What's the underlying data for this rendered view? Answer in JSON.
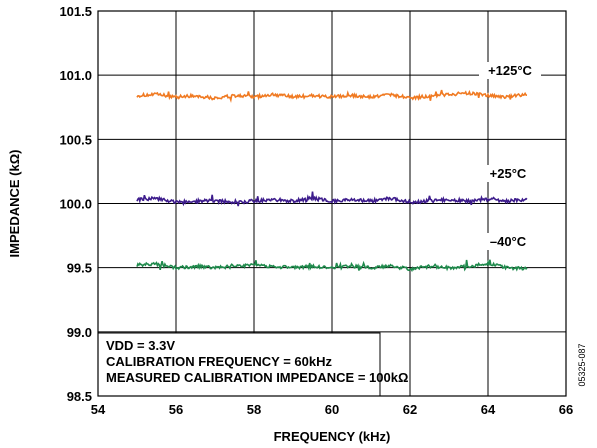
{
  "chart_data": {
    "type": "line",
    "title": "",
    "xlabel": "FREQUENCY (kHz)",
    "ylabel": "IMPEDANCE (kΩ)",
    "xlim": [
      54,
      66
    ],
    "ylim": [
      98.5,
      101.5
    ],
    "xticks": [
      54,
      56,
      58,
      60,
      62,
      64,
      66
    ],
    "xtick_labels": [
      "54",
      "56",
      "58",
      "60",
      "62",
      "64",
      "66"
    ],
    "yticks": [
      98.5,
      99.0,
      99.5,
      100.0,
      100.5,
      101.0,
      101.5
    ],
    "ytick_labels": [
      "98.5",
      "99.0",
      "99.5",
      "100.0",
      "100.5",
      "101.0",
      "101.5"
    ],
    "grid": true,
    "legend": "none",
    "series": [
      {
        "name": "+125°C",
        "color": "#f07a22",
        "x": [
          55,
          55.5,
          56,
          56.5,
          57,
          57.5,
          58,
          58.5,
          59,
          59.5,
          60,
          60.5,
          61,
          61.5,
          62,
          62.5,
          63,
          63.5,
          64,
          64.5,
          65
        ],
        "y": [
          100.84,
          100.85,
          100.83,
          100.84,
          100.82,
          100.84,
          100.83,
          100.85,
          100.83,
          100.84,
          100.83,
          100.84,
          100.83,
          100.85,
          100.82,
          100.84,
          100.85,
          100.86,
          100.84,
          100.83,
          100.85
        ]
      },
      {
        "name": "+25°C",
        "color": "#3d1c8c",
        "x": [
          55,
          55.5,
          56,
          56.5,
          57,
          57.5,
          58,
          58.5,
          59,
          59.5,
          60,
          60.5,
          61,
          61.5,
          62,
          62.5,
          63,
          63.5,
          64,
          64.5,
          65
        ],
        "y": [
          100.03,
          100.04,
          100.01,
          100.02,
          100.02,
          100.01,
          100.02,
          100.03,
          100.02,
          100.04,
          100.02,
          100.03,
          100.02,
          100.04,
          100.01,
          100.02,
          100.03,
          100.02,
          100.03,
          100.02,
          100.03
        ]
      },
      {
        "name": "–40°C",
        "color": "#1f8a4c",
        "x": [
          55,
          55.5,
          56,
          56.5,
          57,
          57.5,
          58,
          58.5,
          59,
          59.5,
          60,
          60.5,
          61,
          61.5,
          62,
          62.5,
          63,
          63.5,
          64,
          64.5,
          65
        ],
        "y": [
          99.52,
          99.53,
          99.5,
          99.51,
          99.5,
          99.51,
          99.52,
          99.51,
          99.5,
          99.51,
          99.5,
          99.51,
          99.5,
          99.51,
          99.49,
          99.51,
          99.5,
          99.51,
          99.53,
          99.5,
          99.49
        ]
      }
    ],
    "annotations": [
      "VDD = 3.3V",
      "CALIBRATION FREQUENCY = 60kHz",
      "MEASURED CALIBRATION IMPEDANCE = 100kΩ"
    ],
    "figure_id": "05325-087"
  }
}
